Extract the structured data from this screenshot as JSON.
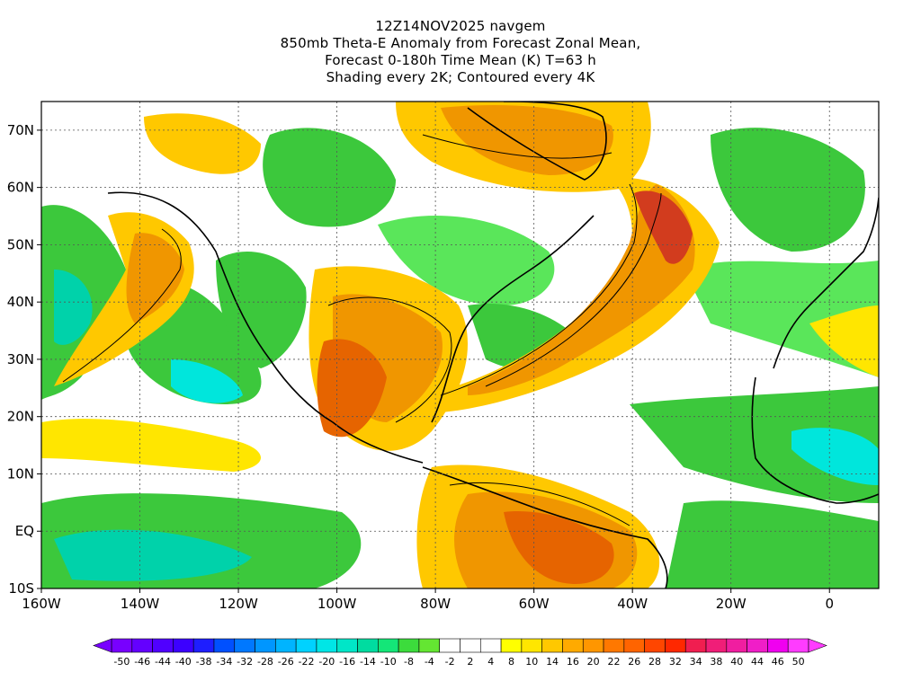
{
  "header": {
    "lines": [
      "12Z14NOV2025 navgem",
      "850mb Theta-E Anomaly from Forecast Zonal Mean,",
      "Forecast 0-180h Time Mean (K) T=63 h",
      "Shading every 2K; Contoured every 4K"
    ]
  },
  "map": {
    "lon_range": [
      -160,
      10
    ],
    "lat_range": [
      -10,
      75
    ],
    "lat_ticks": [
      "70N",
      "60N",
      "50N",
      "40N",
      "30N",
      "20N",
      "10N",
      "EQ",
      "10S"
    ],
    "lon_ticks": [
      "160W",
      "140W",
      "120W",
      "100W",
      "80W",
      "60W",
      "40W",
      "20W",
      "0"
    ],
    "gridlines": "dashed",
    "anomaly_colors": {
      "neg_green": "#3cc83c",
      "neg_light": "#5ae65a",
      "neg_cyan": "#00d2aa",
      "neg_aqua": "#00e6dc",
      "pos_yellow": "#ffe600",
      "pos_gold": "#ffc800",
      "pos_orange": "#f09600",
      "pos_dark": "#e66400",
      "pos_red": "#d23c1e"
    }
  },
  "colorbar": {
    "labels": [
      "-50",
      "-46",
      "-44",
      "-40",
      "-38",
      "-34",
      "-32",
      "-28",
      "-26",
      "-22",
      "-20",
      "-16",
      "-14",
      "-10",
      "-8",
      "-4",
      "-2",
      "2",
      "4",
      "8",
      "10",
      "14",
      "16",
      "20",
      "22",
      "26",
      "28",
      "32",
      "34",
      "38",
      "40",
      "44",
      "46",
      "50"
    ],
    "colors": [
      "#7800ff",
      "#6400ff",
      "#5000ff",
      "#3c00ff",
      "#1e1eff",
      "#0050ff",
      "#0078ff",
      "#0096ff",
      "#00b4ff",
      "#00d2ff",
      "#00e6e6",
      "#00e6c8",
      "#00dca0",
      "#14e678",
      "#3cdc3c",
      "#64e632",
      "#ffffff",
      "#ffffff",
      "#ffffff",
      "#ffff00",
      "#ffe600",
      "#ffc800",
      "#ffaa00",
      "#ff9600",
      "#ff7800",
      "#ff6400",
      "#ff4600",
      "#ff2800",
      "#f01e50",
      "#f01e78",
      "#f01ea0",
      "#f01ec8",
      "#f000f0",
      "#ff3cff"
    ]
  }
}
